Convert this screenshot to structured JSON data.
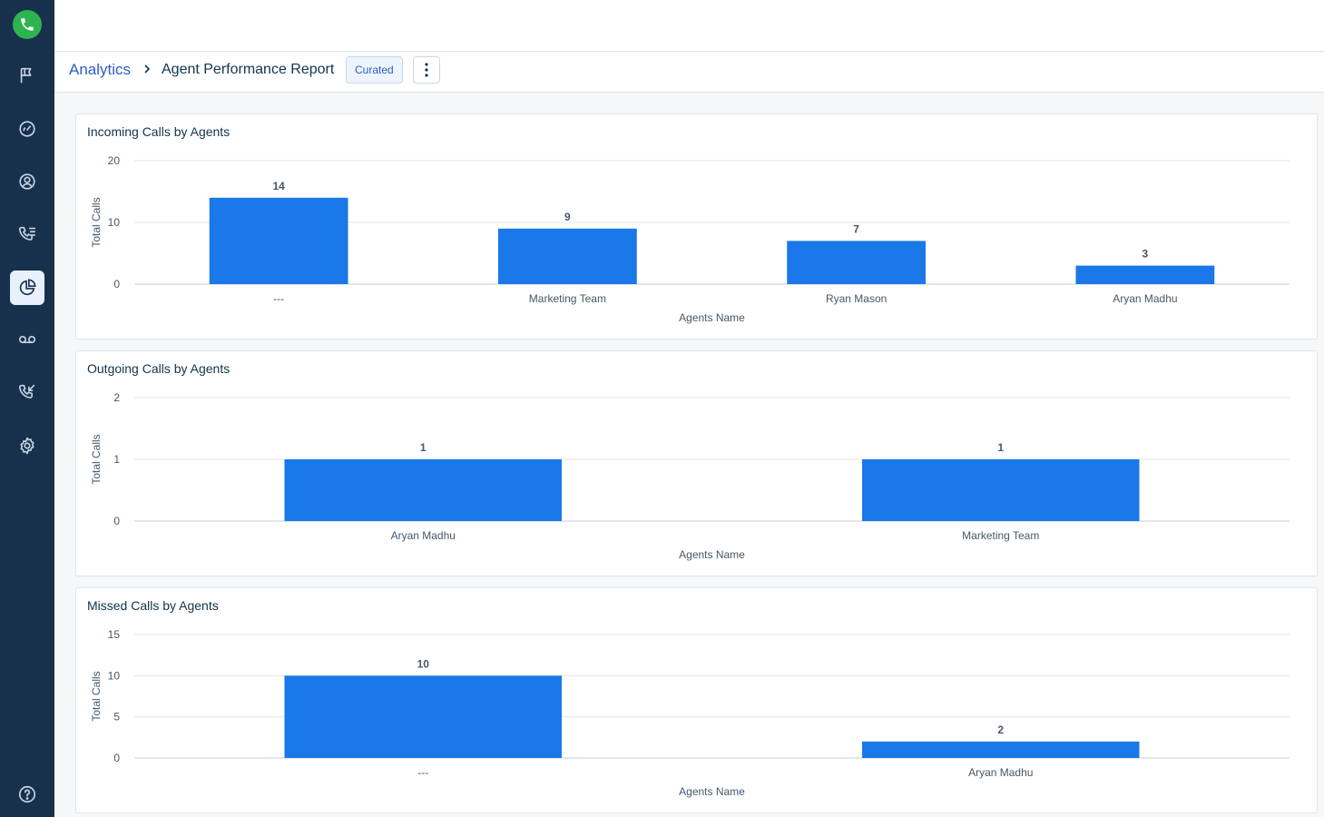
{
  "breadcrumb": {
    "parent": "Analytics",
    "current": "Agent Performance Report",
    "badge": "Curated"
  },
  "sidebar": {
    "items": [
      {
        "icon": "flag-icon"
      },
      {
        "icon": "dashboard-gauge-icon"
      },
      {
        "icon": "contact-icon"
      },
      {
        "icon": "call-log-icon"
      },
      {
        "icon": "analytics-pie-icon",
        "active": true
      },
      {
        "icon": "voicemail-icon"
      },
      {
        "icon": "call-transfer-icon"
      },
      {
        "icon": "settings-gear-icon"
      }
    ],
    "help_icon": "help-icon"
  },
  "colors": {
    "bar": "#1a78e8",
    "sidebar": "#17314d",
    "logo": "#2eb44f",
    "link": "#2c5cc5"
  },
  "chart_data": [
    {
      "type": "bar",
      "title": "Incoming Calls by Agents",
      "categories": [
        "---",
        "Marketing Team",
        "Ryan Mason",
        "Aryan Madhu"
      ],
      "values": [
        14,
        9,
        7,
        3
      ],
      "xlabel": "Agents Name",
      "ylabel": "Total Calls",
      "ylim": [
        0,
        20
      ],
      "yticks": [
        0,
        10,
        20
      ],
      "grid": true
    },
    {
      "type": "bar",
      "title": "Outgoing Calls by Agents",
      "categories": [
        "Aryan Madhu",
        "Marketing Team"
      ],
      "values": [
        1,
        1
      ],
      "xlabel": "Agents Name",
      "ylabel": "Total Calls",
      "ylim": [
        0,
        2
      ],
      "yticks": [
        0,
        1,
        2
      ],
      "grid": true
    },
    {
      "type": "bar",
      "title": "Missed Calls by Agents",
      "categories": [
        "---",
        "Aryan Madhu"
      ],
      "values": [
        10,
        2
      ],
      "xlabel": "Agents Name",
      "ylabel": "Total Calls",
      "ylim": [
        0,
        15
      ],
      "yticks": [
        0,
        5,
        10,
        15
      ],
      "grid": true
    }
  ]
}
